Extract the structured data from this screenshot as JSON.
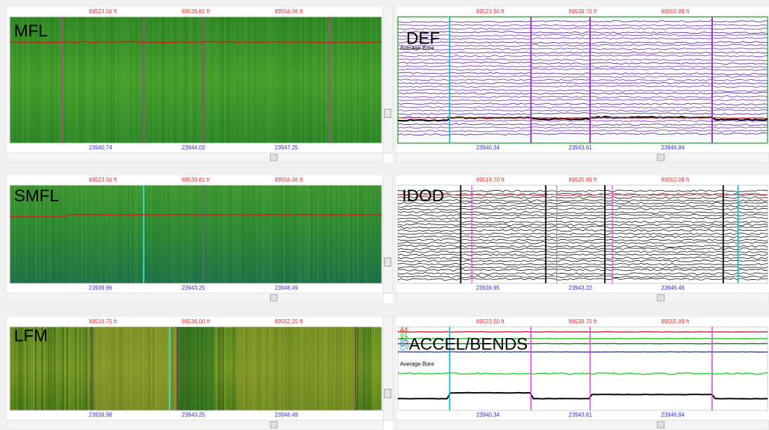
{
  "panels": [
    {
      "name": "MFL",
      "top_labels": [
        "89523.56 ft",
        "89539.81 ft",
        "89556.06 ft"
      ],
      "bottom_labels": [
        "23940.74",
        "23944.02",
        "23947.25"
      ],
      "trace_labels": []
    },
    {
      "name": "DEF",
      "top_labels": [
        "89523.50 ft",
        "89539.70 ft",
        "89555.89 ft"
      ],
      "bottom_labels": [
        "23940.34",
        "23943.61",
        "23946.84"
      ],
      "trace_labels": [
        "Average Bore"
      ]
    },
    {
      "name": "SMFL",
      "top_labels": [
        "89523.56 ft",
        "89539.81 ft",
        "89556.06 ft"
      ],
      "bottom_labels": [
        "23939.96",
        "23943.25",
        "23946.49"
      ],
      "trace_labels": []
    },
    {
      "name": "IDOD",
      "top_labels": [
        "89519.70 ft",
        "89535.89 ft",
        "89552.08 ft"
      ],
      "bottom_labels": [
        "23939.95",
        "23943.22",
        "23946.46"
      ],
      "trace_labels": []
    },
    {
      "name": "LFM",
      "top_labels": [
        "89519.75 ft",
        "89536.00 ft",
        "89552.25 ft"
      ],
      "bottom_labels": [
        "23939.96",
        "23943.25",
        "23946.49"
      ],
      "trace_labels": []
    },
    {
      "name": "ACCEL/BENDS",
      "top_labels": [
        "89523.50 ft",
        "89539.70 ft",
        "89555.89 ft"
      ],
      "bottom_labels": [
        "23940.34",
        "23943.61",
        "23946.84"
      ],
      "trace_labels": [
        "AX",
        "AY",
        "AZ",
        "GX",
        "GY",
        "Average Bore"
      ]
    }
  ]
}
